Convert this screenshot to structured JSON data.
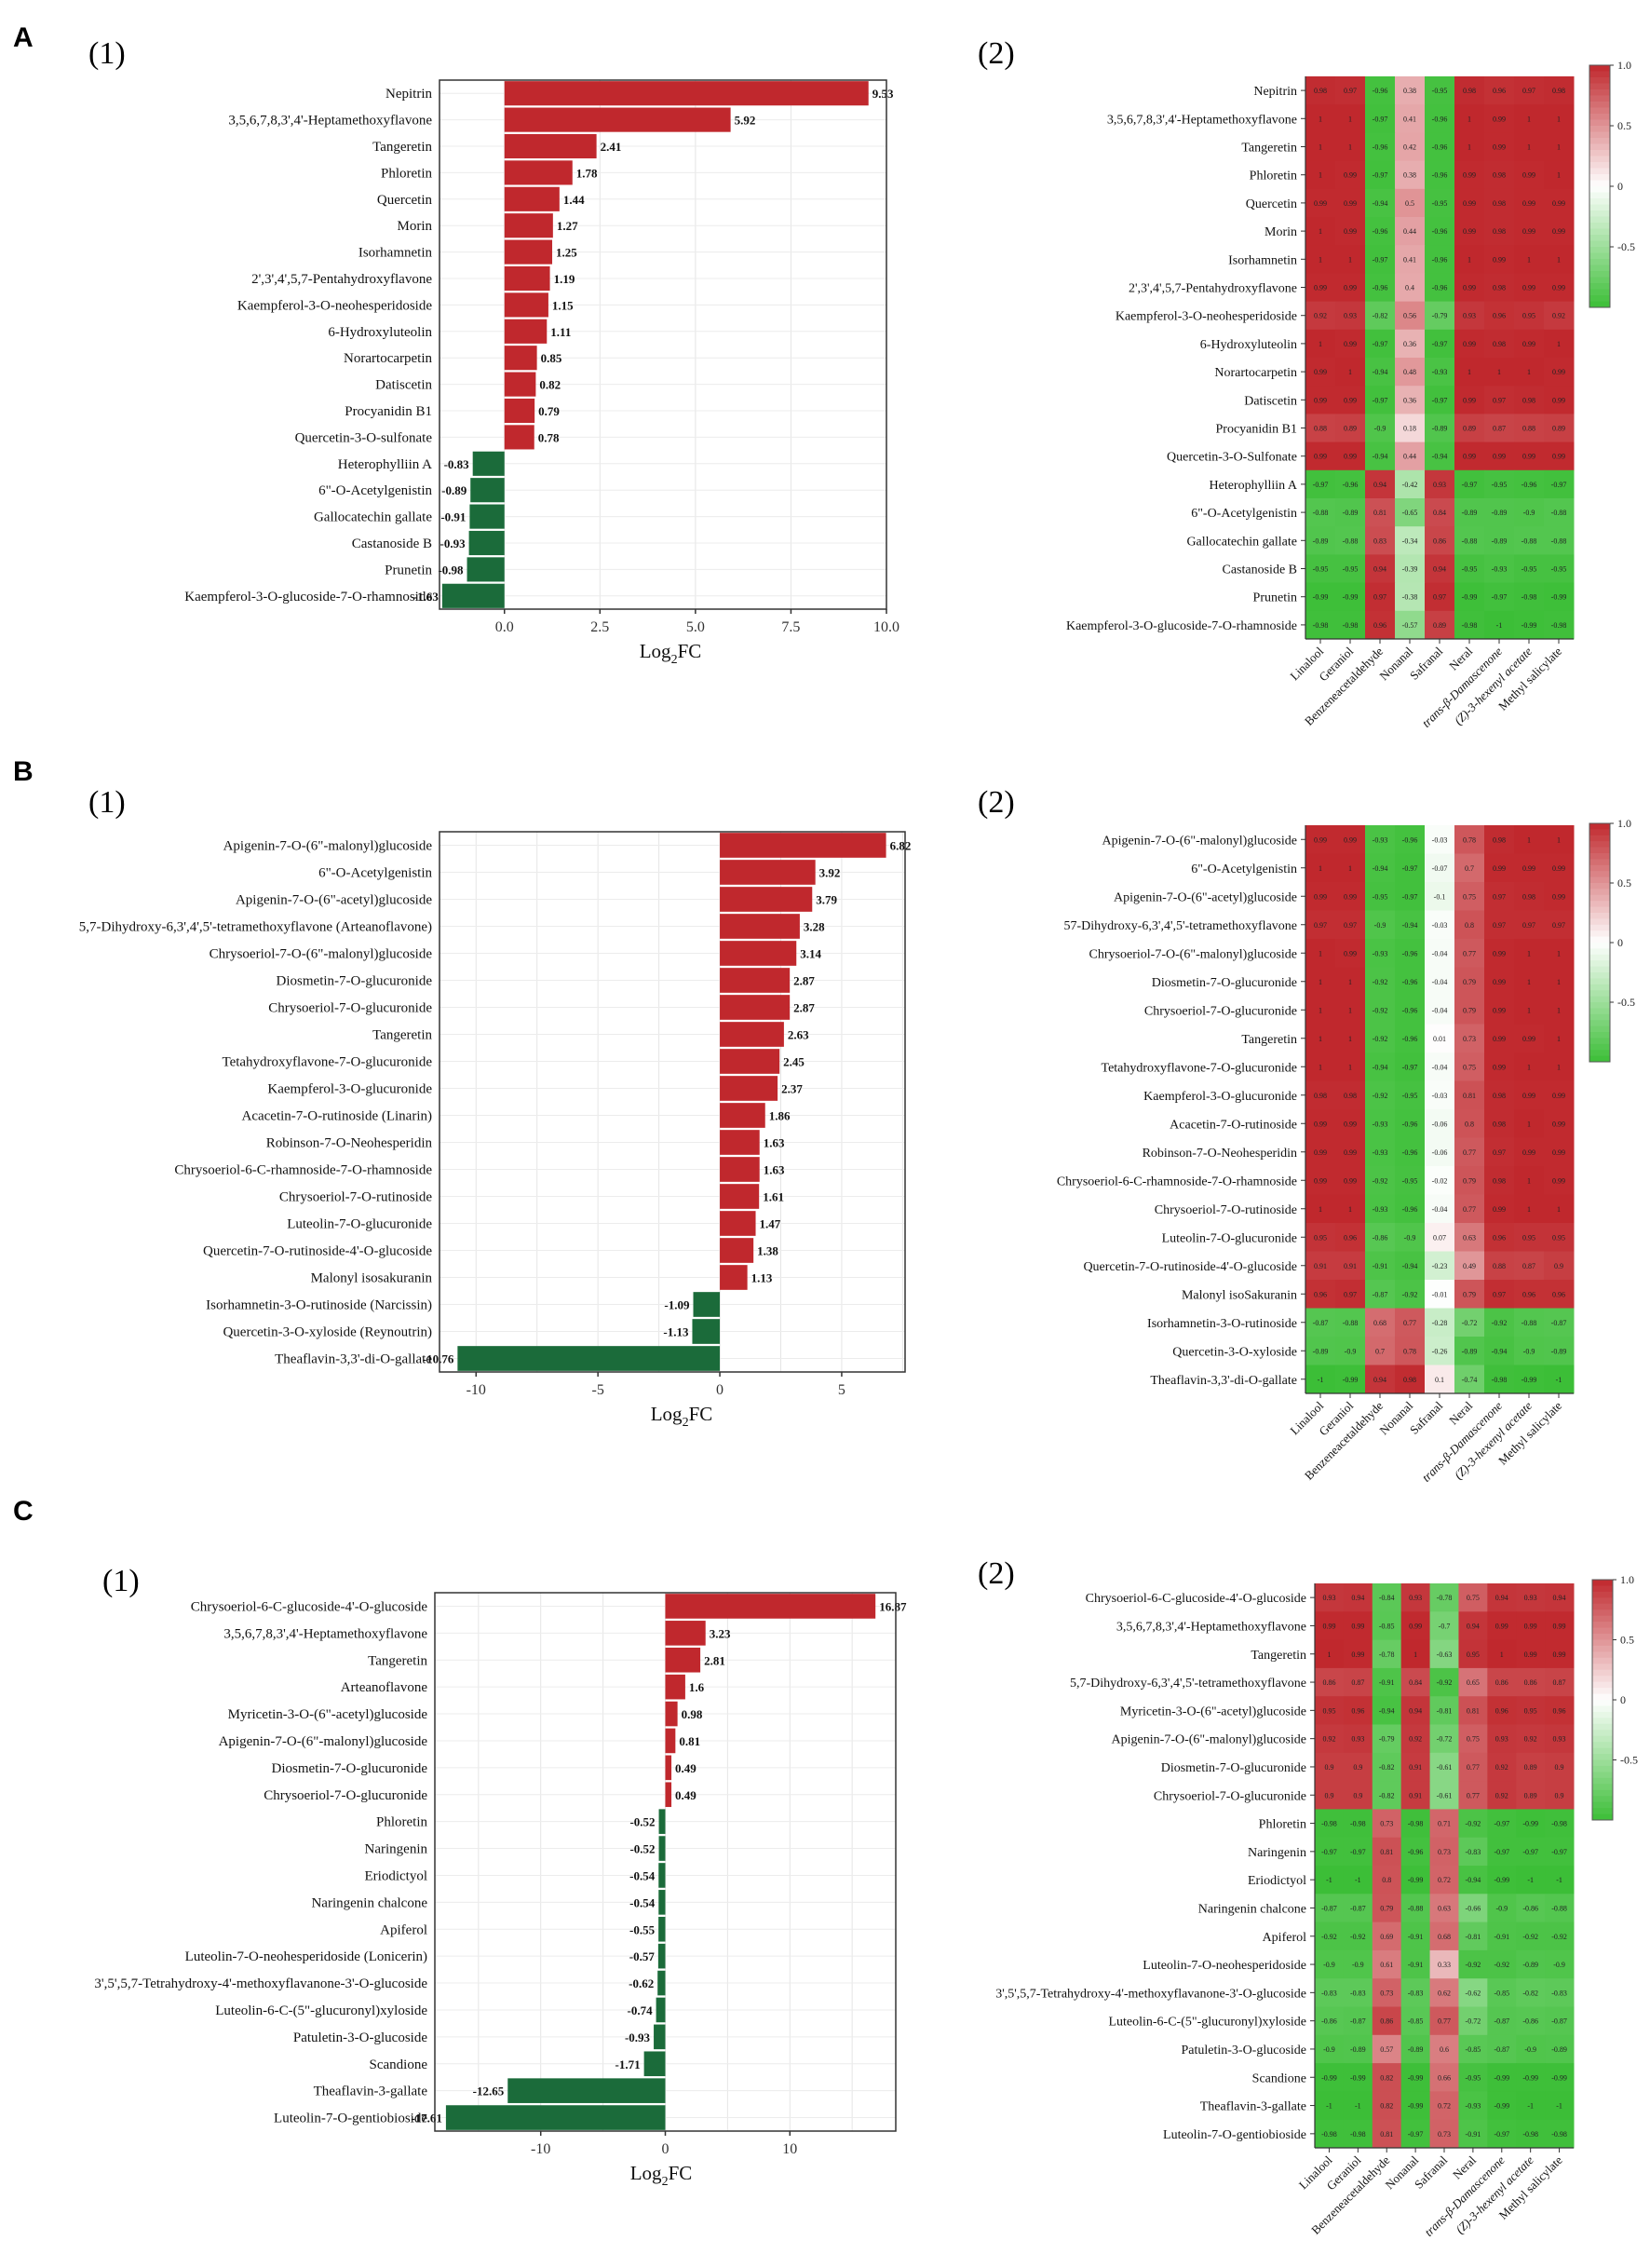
{
  "panel_letters": [
    "A",
    "B",
    "C"
  ],
  "subpanel_labels": {
    "bar": "(1)",
    "heatmap": "(2)"
  },
  "bar_xlabel": "Log",
  "bar_xlabel_sub": "2",
  "bar_xlabel_tail": "FC",
  "volatiles": [
    "Linalool",
    "Geraniol",
    "Benzeneacetaldehyde",
    "Nonanal",
    "Safranal",
    "Neral",
    "trans-β-Damascenone",
    "(Z)-3-hexenyl acetate",
    "Methyl salicylate"
  ],
  "legend_ticks": [
    "1.0",
    "0.5",
    "0",
    "-0.5"
  ],
  "colors": {
    "up": "#c0282d",
    "down": "#1b6b3a"
  },
  "chart_data": [
    {
      "type": "bar",
      "panel": "A(1)",
      "categories": [
        "Nepitrin",
        "3,5,6,7,8,3',4'-Heptamethoxyflavone",
        "Tangeretin",
        "Phloretin",
        "Quercetin",
        "Morin",
        "Isorhamnetin",
        "2',3',4',5,7-Pentahydroxyflavone",
        "Kaempferol-3-O-neohesperidoside",
        "6-Hydroxyluteolin",
        "Norartocarpetin",
        "Datiscetin",
        "Procyanidin B1",
        "Quercetin-3-O-sulfonate",
        "Heterophylliin A",
        "6\"-O-Acetylgenistin",
        "Gallocatechin gallate",
        "Castanoside B",
        "Prunetin",
        "Kaempferol-3-O-glucoside-7-O-rhamnoside"
      ],
      "values": [
        9.53,
        5.92,
        2.41,
        1.78,
        1.44,
        1.27,
        1.25,
        1.19,
        1.15,
        1.11,
        0.85,
        0.82,
        0.79,
        0.78,
        -0.83,
        -0.89,
        -0.91,
        -0.93,
        -0.98,
        -1.63
      ],
      "labels": [
        "9.53",
        "5.92",
        "2.41",
        "1.78",
        "1.44",
        "1.27",
        "1.25",
        "1.19",
        "1.15",
        "1.11",
        "0.85",
        "0.82",
        "0.79",
        "0.78",
        "-0.83",
        "-0.89",
        "-0.91",
        "-0.93",
        "-0.98",
        "-1.63"
      ],
      "xlim": [
        -1.7,
        10.0
      ],
      "ticks": [
        0,
        2.5,
        5,
        7.5,
        10
      ],
      "tick_labels": [
        "0.0",
        "2.5",
        "5.0",
        "7.5",
        "10.0"
      ],
      "xlabel": "Log2FC",
      "grid": true
    },
    {
      "type": "heatmap",
      "panel": "A(2)",
      "rows": [
        "Nepitrin",
        "3,5,6,7,8,3',4'-Heptamethoxyflavone",
        "Tangeretin",
        "Phloretin",
        "Quercetin",
        "Morin",
        "Isorhamnetin",
        "2',3',4',5,7-Pentahydroxyflavone",
        "Kaempferol-3-O-neohesperidoside",
        "6-Hydroxyluteolin",
        "Norartocarpetin",
        "Datiscetin",
        "Procyanidin B1",
        "Quercetin-3-O-Sulfonate",
        "Heterophylliin A",
        "6\"-O-Acetylgenistin",
        "Gallocatechin gallate",
        "Castanoside B",
        "Prunetin",
        "Kaempferol-3-O-glucoside-7-O-rhamnoside"
      ],
      "values": [
        [
          0.98,
          0.97,
          -0.96,
          0.38,
          -0.95,
          0.98,
          0.96,
          0.97,
          0.98
        ],
        [
          1.0,
          1.0,
          -0.97,
          0.41,
          -0.96,
          1.0,
          0.99,
          1.0,
          1.0
        ],
        [
          1.0,
          1.0,
          -0.96,
          0.42,
          -0.96,
          1.0,
          0.99,
          1.0,
          1.0
        ],
        [
          1.0,
          0.99,
          -0.97,
          0.38,
          -0.96,
          0.99,
          0.98,
          0.99,
          1.0
        ],
        [
          0.99,
          0.99,
          -0.94,
          0.5,
          -0.95,
          0.99,
          0.98,
          0.99,
          0.99
        ],
        [
          1.0,
          0.99,
          -0.96,
          0.44,
          -0.96,
          0.99,
          0.98,
          0.99,
          0.99
        ],
        [
          1.0,
          1.0,
          -0.97,
          0.41,
          -0.96,
          1.0,
          0.99,
          1.0,
          1.0
        ],
        [
          0.99,
          0.99,
          -0.96,
          0.4,
          -0.96,
          0.99,
          0.98,
          0.99,
          0.99
        ],
        [
          0.92,
          0.93,
          -0.82,
          0.56,
          -0.79,
          0.93,
          0.96,
          0.95,
          0.92
        ],
        [
          1.0,
          0.99,
          -0.97,
          0.36,
          -0.97,
          0.99,
          0.98,
          0.99,
          1.0
        ],
        [
          0.99,
          1.0,
          -0.94,
          0.48,
          -0.93,
          1.0,
          1.0,
          1.0,
          0.99
        ],
        [
          0.99,
          0.99,
          -0.97,
          0.36,
          -0.97,
          0.99,
          0.97,
          0.98,
          0.99
        ],
        [
          0.88,
          0.89,
          -0.9,
          0.18,
          -0.89,
          0.89,
          0.87,
          0.88,
          0.89
        ],
        [
          0.99,
          0.99,
          -0.94,
          0.44,
          -0.94,
          0.99,
          0.99,
          0.99,
          0.99
        ],
        [
          -0.97,
          -0.96,
          0.94,
          -0.42,
          0.93,
          -0.97,
          -0.95,
          -0.96,
          -0.97
        ],
        [
          -0.88,
          -0.89,
          0.81,
          -0.65,
          0.84,
          -0.89,
          -0.89,
          -0.9,
          -0.88
        ],
        [
          -0.89,
          -0.88,
          0.83,
          -0.34,
          0.86,
          -0.88,
          -0.89,
          -0.88,
          -0.88
        ],
        [
          -0.95,
          -0.95,
          0.94,
          -0.39,
          0.94,
          -0.95,
          -0.93,
          -0.95,
          -0.95
        ],
        [
          -0.99,
          -0.99,
          0.97,
          -0.38,
          0.97,
          -0.99,
          -0.97,
          -0.98,
          -0.99
        ],
        [
          -0.98,
          -0.98,
          0.96,
          -0.57,
          0.89,
          -0.98,
          -1.0,
          -0.99,
          -0.98
        ]
      ],
      "color_range": [
        -1,
        1
      ]
    },
    {
      "type": "bar",
      "panel": "B(1)",
      "categories": [
        "Apigenin-7-O-(6\"-malonyl)glucoside",
        "6\"-O-Acetylgenistin",
        "Apigenin-7-O-(6\"-acetyl)glucoside",
        "5,7-Dihydroxy-6,3',4',5'-tetramethoxyflavone (Arteanoflavone)",
        "Chrysoeriol-7-O-(6\"-malonyl)glucoside",
        "Diosmetin-7-O-glucuronide",
        "Chrysoeriol-7-O-glucuronide",
        "Tangeretin",
        "Tetahydroxyflavone-7-O-glucuronide",
        "Kaempferol-3-O-glucuronide",
        "Acacetin-7-O-rutinoside (Linarin)",
        "Robinson-7-O-Neohesperidin",
        "Chrysoeriol-6-C-rhamnoside-7-O-rhamnoside",
        "Chrysoeriol-7-O-rutinoside",
        "Luteolin-7-O-glucuronide",
        "Quercetin-7-O-rutinoside-4'-O-glucoside",
        "Malonyl isosakuranin",
        "Isorhamnetin-3-O-rutinoside (Narcissin)",
        "Quercetin-3-O-xyloside (Reynoutrin)",
        "Theaflavin-3,3'-di-O-gallate"
      ],
      "values": [
        6.82,
        3.92,
        3.79,
        3.28,
        3.14,
        2.87,
        2.87,
        2.63,
        2.45,
        2.37,
        1.86,
        1.63,
        1.63,
        1.61,
        1.47,
        1.38,
        1.13,
        -1.09,
        -1.13,
        -10.76
      ],
      "labels": [
        "6.82",
        "3.92",
        "3.79",
        "3.28",
        "3.14",
        "2.87",
        "2.87",
        "2.63",
        "2.45",
        "2.37",
        "1.86",
        "1.63",
        "1.63",
        "1.61",
        "1.47",
        "1.38",
        "1.13",
        "-1.09",
        "-1.13",
        "-10.76"
      ],
      "xlim": [
        -11.5,
        7.6
      ],
      "ticks": [
        -10,
        -5,
        0,
        5
      ],
      "tick_labels": [
        "-10",
        "-5",
        "0",
        "5"
      ],
      "xlabel": "Log2FC",
      "grid": true
    },
    {
      "type": "heatmap",
      "panel": "B(2)",
      "rows": [
        "Apigenin-7-O-(6\"-malonyl)glucoside",
        "6\"-O-Acetylgenistin",
        "Apigenin-7-O-(6\"-acetyl)glucoside",
        "57-Dihydroxy-6,3',4',5'-tetramethoxyflavone",
        "Chrysoeriol-7-O-(6\"-malonyl)glucoside",
        "Diosmetin-7-O-glucuronide",
        "Chrysoeriol-7-O-glucuronide",
        "Tangeretin",
        "Tetahydroxyflavone-7-O-glucuronide",
        "Kaempferol-3-O-glucuronide",
        "Acacetin-7-O-rutinoside",
        "Robinson-7-O-Neohesperidin",
        "Chrysoeriol-6-C-rhamnoside-7-O-rhamnoside",
        "Chrysoeriol-7-O-rutinoside",
        "Luteolin-7-O-glucuronide",
        "Quercetin-7-O-rutinoside-4'-O-glucoside",
        "Malonyl isoSakuranin",
        "Isorhamnetin-3-O-rutinoside",
        "Quercetin-3-O-xyloside",
        "Theaflavin-3,3'-di-O-gallate"
      ],
      "values": [
        [
          0.99,
          0.99,
          -0.93,
          -0.96,
          -0.03,
          0.78,
          0.98,
          1.0,
          1.0
        ],
        [
          1.0,
          1.0,
          -0.94,
          -0.97,
          -0.07,
          0.7,
          0.99,
          0.99,
          0.99
        ],
        [
          0.99,
          0.99,
          -0.95,
          -0.97,
          -0.1,
          0.75,
          0.97,
          0.98,
          0.99
        ],
        [
          0.97,
          0.97,
          -0.9,
          -0.94,
          -0.03,
          0.8,
          0.97,
          0.97,
          0.97
        ],
        [
          1.0,
          0.99,
          -0.93,
          -0.96,
          -0.04,
          0.77,
          0.99,
          1.0,
          1.0
        ],
        [
          1.0,
          1.0,
          -0.92,
          -0.96,
          -0.04,
          0.79,
          0.99,
          1.0,
          1.0
        ],
        [
          1.0,
          1.0,
          -0.92,
          -0.96,
          -0.04,
          0.79,
          0.99,
          1.0,
          1.0
        ],
        [
          1.0,
          1.0,
          -0.92,
          -0.96,
          0.01,
          0.73,
          0.99,
          0.99,
          1.0
        ],
        [
          1.0,
          1.0,
          -0.94,
          -0.97,
          -0.04,
          0.75,
          0.99,
          1.0,
          1.0
        ],
        [
          0.98,
          0.98,
          -0.92,
          -0.95,
          -0.03,
          0.81,
          0.98,
          0.99,
          0.99
        ],
        [
          0.99,
          0.99,
          -0.93,
          -0.96,
          -0.06,
          0.8,
          0.98,
          1.0,
          0.99
        ],
        [
          0.99,
          0.99,
          -0.93,
          -0.96,
          -0.06,
          0.77,
          0.97,
          0.99,
          0.99
        ],
        [
          0.99,
          0.99,
          -0.92,
          -0.95,
          -0.02,
          0.79,
          0.98,
          1.0,
          0.99
        ],
        [
          1.0,
          1.0,
          -0.93,
          -0.96,
          -0.04,
          0.77,
          0.99,
          1.0,
          1.0
        ],
        [
          0.95,
          0.96,
          -0.86,
          -0.9,
          0.07,
          0.63,
          0.96,
          0.95,
          0.95
        ],
        [
          0.91,
          0.91,
          -0.91,
          -0.94,
          -0.23,
          0.49,
          0.88,
          0.87,
          0.9
        ],
        [
          0.96,
          0.97,
          -0.87,
          -0.92,
          -0.01,
          0.79,
          0.97,
          0.96,
          0.96
        ],
        [
          -0.87,
          -0.88,
          0.68,
          0.77,
          -0.28,
          -0.72,
          -0.92,
          -0.88,
          -0.87
        ],
        [
          -0.89,
          -0.9,
          0.7,
          0.78,
          -0.26,
          -0.89,
          -0.94,
          -0.9,
          -0.89
        ],
        [
          -1.0,
          -0.99,
          0.94,
          0.98,
          0.1,
          -0.74,
          -0.98,
          -0.99,
          -1.0
        ]
      ],
      "color_range": [
        -1,
        1
      ]
    },
    {
      "type": "bar",
      "panel": "C(1)",
      "categories": [
        "Chrysoeriol-6-C-glucoside-4'-O-glucoside",
        "3,5,6,7,8,3',4'-Heptamethoxyflavone",
        "Tangeretin",
        "Arteanoflavone",
        "Myricetin-3-O-(6\"-acetyl)glucoside",
        "Apigenin-7-O-(6\"-malonyl)glucoside",
        "Diosmetin-7-O-glucuronide",
        "Chrysoeriol-7-O-glucuronide",
        "Phloretin",
        "Naringenin",
        "Eriodictyol",
        "Naringenin chalcone",
        "Apiferol",
        "Luteolin-7-O-neohesperidoside (Lonicerin)",
        "3',5',5,7-Tetrahydroxy-4'-methoxyflavanone-3'-O-glucoside",
        "Luteolin-6-C-(5\"-glucuronyl)xyloside",
        "Patuletin-3-O-glucoside",
        "Scandione",
        "Theaflavin-3-gallate",
        "Luteolin-7-O-gentiobioside"
      ],
      "values": [
        16.87,
        3.23,
        2.81,
        1.6,
        0.98,
        0.81,
        0.49,
        0.49,
        -0.52,
        -0.52,
        -0.54,
        -0.54,
        -0.55,
        -0.57,
        -0.62,
        -0.74,
        -0.93,
        -1.71,
        -12.65,
        -17.61
      ],
      "labels": [
        "16.87",
        "3.23",
        "2.81",
        "1.6",
        "0.98",
        "0.81",
        "0.49",
        "0.49",
        "-0.52",
        "-0.52",
        "-0.54",
        "-0.54",
        "-0.55",
        "-0.57",
        "-0.62",
        "-0.74",
        "-0.93",
        "-1.71",
        "-12.65",
        "-17.61"
      ],
      "xlim": [
        -18.5,
        18.5
      ],
      "ticks": [
        -10,
        0,
        10
      ],
      "tick_labels": [
        "-10",
        "0",
        "10"
      ],
      "xlabel": "Log2FC",
      "grid": true
    },
    {
      "type": "heatmap",
      "panel": "C(2)",
      "rows": [
        "Chrysoeriol-6-C-glucoside-4'-O-glucoside",
        "3,5,6,7,8,3',4'-Heptamethoxyflavone",
        "Tangeretin",
        "5,7-Dihydroxy-6,3',4',5'-tetramethoxyflavone",
        "Myricetin-3-O-(6\"-acetyl)glucoside",
        "Apigenin-7-O-(6\"-malonyl)glucoside",
        "Diosmetin-7-O-glucuronide",
        "Chrysoeriol-7-O-glucuronide",
        "Phloretin",
        "Naringenin",
        "Eriodictyol",
        "Naringenin chalcone",
        "Apiferol",
        "Luteolin-7-O-neohesperidoside",
        "3',5',5,7-Tetrahydroxy-4'-methoxyflavanone-3'-O-glucoside",
        "Luteolin-6-C-(5\"-glucuronyl)xyloside",
        "Patuletin-3-O-glucoside",
        "Scandione",
        "Theaflavin-3-gallate",
        "Luteolin-7-O-gentiobioside"
      ],
      "values": [
        [
          0.93,
          0.94,
          -0.84,
          0.93,
          -0.78,
          0.75,
          0.94,
          0.93,
          0.94
        ],
        [
          0.99,
          0.99,
          -0.85,
          0.99,
          -0.7,
          0.94,
          0.99,
          0.99,
          0.99
        ],
        [
          1.0,
          0.99,
          -0.78,
          1.0,
          -0.63,
          0.95,
          1.0,
          0.99,
          0.99
        ],
        [
          0.86,
          0.87,
          -0.91,
          0.84,
          -0.92,
          0.65,
          0.86,
          0.86,
          0.87
        ],
        [
          0.95,
          0.96,
          -0.94,
          0.94,
          -0.81,
          0.81,
          0.96,
          0.95,
          0.96
        ],
        [
          0.92,
          0.93,
          -0.79,
          0.92,
          -0.72,
          0.75,
          0.93,
          0.92,
          0.93
        ],
        [
          0.9,
          0.9,
          -0.82,
          0.91,
          -0.61,
          0.77,
          0.92,
          0.89,
          0.9
        ],
        [
          0.9,
          0.9,
          -0.82,
          0.91,
          -0.61,
          0.77,
          0.92,
          0.89,
          0.9
        ],
        [
          -0.98,
          -0.98,
          0.73,
          -0.98,
          0.71,
          -0.92,
          -0.97,
          -0.99,
          -0.98
        ],
        [
          -0.97,
          -0.97,
          0.81,
          -0.96,
          0.73,
          -0.83,
          -0.97,
          -0.97,
          -0.97
        ],
        [
          -1.0,
          -1.0,
          0.8,
          -0.99,
          0.72,
          -0.94,
          -0.99,
          -1.0,
          -1.0
        ],
        [
          -0.87,
          -0.87,
          0.79,
          -0.88,
          0.63,
          -0.66,
          -0.9,
          -0.86,
          -0.88
        ],
        [
          -0.92,
          -0.92,
          0.69,
          -0.91,
          0.68,
          -0.81,
          -0.91,
          -0.92,
          -0.92
        ],
        [
          -0.9,
          -0.9,
          0.61,
          -0.91,
          0.33,
          -0.92,
          -0.92,
          -0.89,
          -0.9
        ],
        [
          -0.83,
          -0.83,
          0.73,
          -0.83,
          0.62,
          -0.62,
          -0.85,
          -0.82,
          -0.83
        ],
        [
          -0.86,
          -0.87,
          0.86,
          -0.85,
          0.77,
          -0.72,
          -0.87,
          -0.86,
          -0.87
        ],
        [
          -0.9,
          -0.89,
          0.57,
          -0.89,
          0.6,
          -0.85,
          -0.87,
          -0.9,
          -0.89
        ],
        [
          -0.99,
          -0.99,
          0.82,
          -0.99,
          0.66,
          -0.95,
          -0.99,
          -0.99,
          -0.99
        ],
        [
          -1.0,
          -1.0,
          0.82,
          -0.99,
          0.72,
          -0.93,
          -0.99,
          -1.0,
          -1.0
        ],
        [
          -0.98,
          -0.98,
          0.81,
          -0.97,
          0.73,
          -0.91,
          -0.97,
          -0.98,
          -0.98
        ]
      ],
      "color_range": [
        -1,
        1
      ]
    }
  ]
}
